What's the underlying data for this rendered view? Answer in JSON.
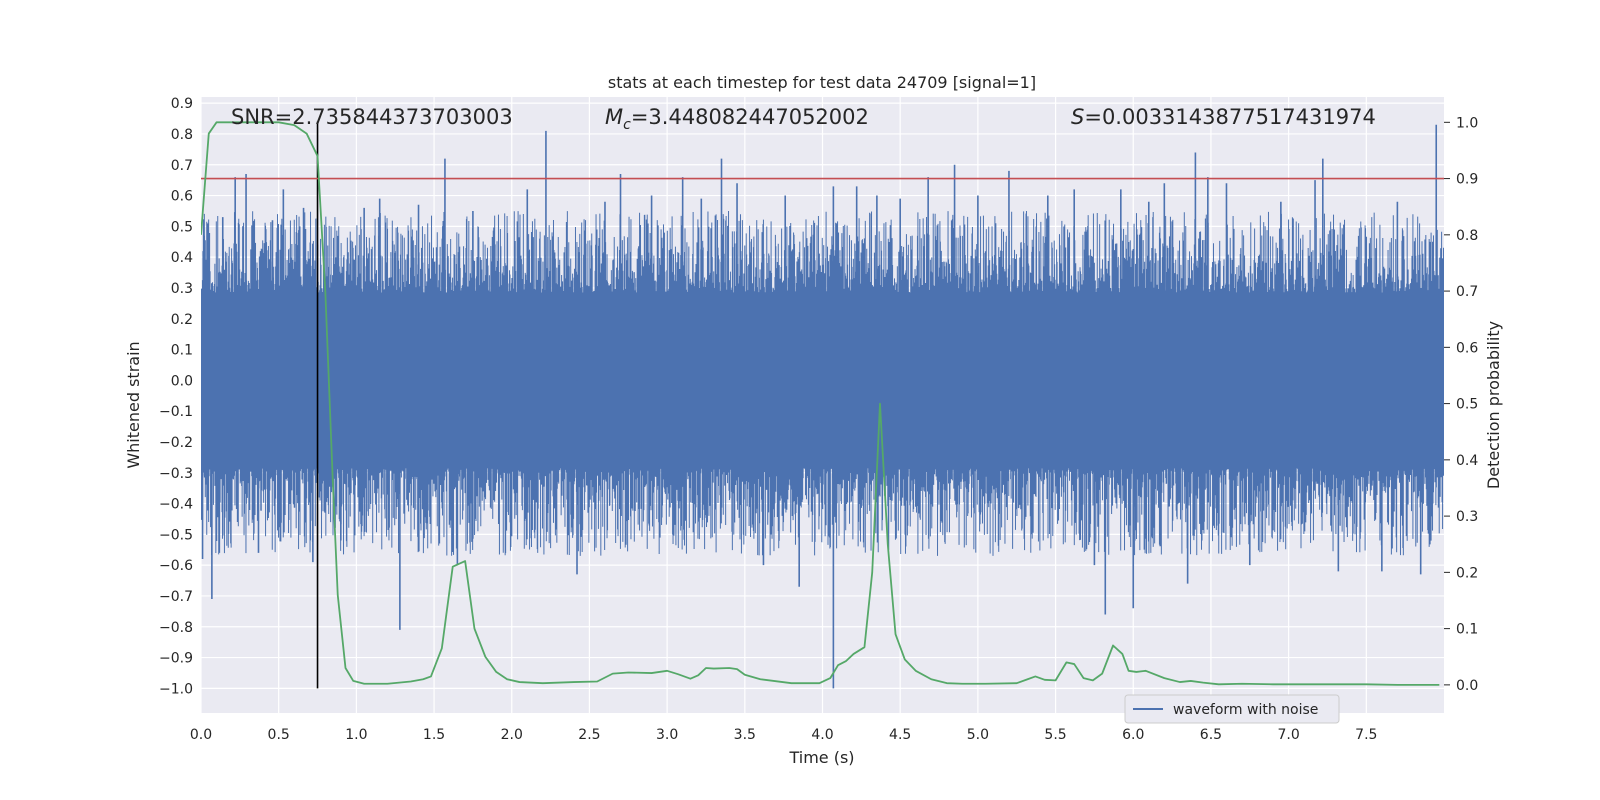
{
  "chart_data": {
    "type": "line",
    "title": "stats at each timestep for test data 24709 [signal=1]",
    "xlabel": "Time (s)",
    "ylabel_left": "Whitened strain",
    "ylabel_right": "Detection probability",
    "xlim": [
      0.0,
      8.0
    ],
    "ylim_left": [
      -1.08,
      0.92
    ],
    "ylim_right": [
      -0.05,
      1.045
    ],
    "x_ticks": [
      0.0,
      0.5,
      1.0,
      1.5,
      2.0,
      2.5,
      3.0,
      3.5,
      4.0,
      4.5,
      5.0,
      5.5,
      6.0,
      6.5,
      7.0,
      7.5
    ],
    "x_tick_labels": [
      "0.0",
      "0.5",
      "1.0",
      "1.5",
      "2.0",
      "2.5",
      "3.0",
      "3.5",
      "4.0",
      "4.5",
      "5.0",
      "5.5",
      "6.0",
      "6.5",
      "7.0",
      "7.5"
    ],
    "y_left_ticks": [
      0.9,
      0.8,
      0.7,
      0.6,
      0.5,
      0.4,
      0.3,
      0.2,
      0.1,
      0.0,
      -0.1,
      -0.2,
      -0.3,
      -0.4,
      -0.5,
      -0.6,
      -0.7,
      -0.8,
      -0.9,
      -1.0
    ],
    "y_left_tick_labels": [
      "0.9",
      "0.8",
      "0.7",
      "0.6",
      "0.5",
      "0.4",
      "0.3",
      "0.2",
      "0.1",
      "0.0",
      "−0.1",
      "−0.2",
      "−0.3",
      "−0.4",
      "−0.5",
      "−0.6",
      "−0.7",
      "−0.8",
      "−0.9",
      "−1.0"
    ],
    "y_right_ticks": [
      1.0,
      0.9,
      0.8,
      0.7,
      0.6,
      0.5,
      0.4,
      0.3,
      0.2,
      0.1,
      0.0
    ],
    "y_right_tick_labels": [
      "1.0",
      "0.9",
      "0.8",
      "0.7",
      "0.6",
      "0.5",
      "0.4",
      "0.3",
      "0.2",
      "0.1",
      "0.0"
    ],
    "grid": true,
    "annotations": {
      "snr": "SNR=2.735844373703003",
      "mc_symbol": "M",
      "mc_sub": "c",
      "mc_value": "=3.448082447052002",
      "s_symbol": "S",
      "s_value": "=0.0033143877517431974"
    },
    "legend": {
      "label": "waveform with noise",
      "position": "lower right"
    },
    "threshold": {
      "axis": "right",
      "value": 0.9,
      "color": "#c44e52"
    },
    "vertical_marker": {
      "x": 0.75,
      "from": -1.0,
      "to": 0.84,
      "color": "#000000"
    },
    "waveform": {
      "name": "waveform with noise",
      "color": "#4c72b0",
      "core_amplitude": 0.285,
      "typical_peak": 0.45,
      "spikes": [
        [
          0.01,
          -0.58
        ],
        [
          0.02,
          0.47
        ],
        [
          0.07,
          -0.71
        ],
        [
          0.14,
          0.53
        ],
        [
          0.22,
          0.66
        ],
        [
          0.29,
          0.67
        ],
        [
          0.37,
          -0.56
        ],
        [
          0.46,
          0.52
        ],
        [
          0.53,
          0.62
        ],
        [
          0.66,
          0.56
        ],
        [
          0.72,
          -0.59
        ],
        [
          0.9,
          -0.52
        ],
        [
          1.05,
          0.56
        ],
        [
          1.15,
          0.59
        ],
        [
          1.28,
          -0.81
        ],
        [
          1.4,
          0.57
        ],
        [
          1.57,
          0.72
        ],
        [
          1.65,
          -0.6
        ],
        [
          1.75,
          0.55
        ],
        [
          2.1,
          0.62
        ],
        [
          2.22,
          0.81
        ],
        [
          2.42,
          -0.63
        ],
        [
          2.6,
          0.58
        ],
        [
          2.7,
          0.67
        ],
        [
          2.9,
          0.6
        ],
        [
          3.1,
          0.66
        ],
        [
          3.22,
          0.59
        ],
        [
          3.35,
          0.72
        ],
        [
          3.45,
          0.64
        ],
        [
          3.62,
          -0.6
        ],
        [
          3.76,
          0.6
        ],
        [
          3.85,
          -0.67
        ],
        [
          4.07,
          -1.0
        ],
        [
          4.07,
          0.63
        ],
        [
          4.22,
          0.63
        ],
        [
          4.35,
          0.6
        ],
        [
          4.5,
          0.59
        ],
        [
          4.68,
          0.66
        ],
        [
          4.85,
          0.7
        ],
        [
          5.0,
          0.6
        ],
        [
          5.2,
          0.68
        ],
        [
          5.45,
          0.6
        ],
        [
          5.62,
          0.62
        ],
        [
          5.75,
          -0.6
        ],
        [
          5.82,
          -0.76
        ],
        [
          5.92,
          0.62
        ],
        [
          6.0,
          -0.74
        ],
        [
          6.1,
          0.58
        ],
        [
          6.2,
          0.64
        ],
        [
          6.35,
          -0.66
        ],
        [
          6.4,
          0.74
        ],
        [
          6.48,
          0.66
        ],
        [
          6.6,
          0.64
        ],
        [
          6.75,
          -0.6
        ],
        [
          6.95,
          0.58
        ],
        [
          7.17,
          0.65
        ],
        [
          7.22,
          0.72
        ],
        [
          7.32,
          -0.62
        ],
        [
          7.6,
          -0.62
        ],
        [
          7.7,
          0.58
        ],
        [
          7.85,
          -0.63
        ],
        [
          7.95,
          0.83
        ]
      ]
    },
    "detection_probability": {
      "axis": "right",
      "color": "#55a868",
      "x": [
        0.0,
        0.05,
        0.1,
        0.15,
        0.2,
        0.3,
        0.4,
        0.5,
        0.6,
        0.68,
        0.75,
        0.8,
        0.85,
        0.88,
        0.93,
        0.98,
        1.05,
        1.2,
        1.35,
        1.43,
        1.48,
        1.55,
        1.62,
        1.7,
        1.76,
        1.83,
        1.9,
        1.97,
        2.05,
        2.2,
        2.4,
        2.55,
        2.65,
        2.75,
        2.9,
        3.0,
        3.07,
        3.15,
        3.2,
        3.25,
        3.3,
        3.4,
        3.45,
        3.5,
        3.6,
        3.8,
        3.98,
        4.05,
        4.1,
        4.15,
        4.2,
        4.27,
        4.32,
        4.37,
        4.42,
        4.47,
        4.53,
        4.6,
        4.7,
        4.8,
        4.9,
        5.05,
        5.25,
        5.32,
        5.37,
        5.43,
        5.5,
        5.57,
        5.62,
        5.68,
        5.74,
        5.8,
        5.87,
        5.93,
        5.97,
        6.02,
        6.08,
        6.2,
        6.3,
        6.37,
        6.45,
        6.55,
        6.7,
        6.9,
        7.1,
        7.3,
        7.5,
        7.7,
        7.9,
        7.97
      ],
      "values": [
        0.8,
        0.98,
        1.0,
        1.0,
        1.0,
        1.0,
        1.0,
        1.0,
        0.995,
        0.98,
        0.94,
        0.7,
        0.35,
        0.16,
        0.03,
        0.007,
        0.002,
        0.002,
        0.006,
        0.01,
        0.015,
        0.065,
        0.21,
        0.22,
        0.1,
        0.05,
        0.023,
        0.01,
        0.005,
        0.003,
        0.005,
        0.006,
        0.02,
        0.022,
        0.021,
        0.025,
        0.019,
        0.011,
        0.017,
        0.03,
        0.029,
        0.03,
        0.028,
        0.018,
        0.01,
        0.003,
        0.003,
        0.012,
        0.035,
        0.042,
        0.055,
        0.067,
        0.2,
        0.5,
        0.25,
        0.09,
        0.045,
        0.025,
        0.01,
        0.003,
        0.002,
        0.002,
        0.003,
        0.01,
        0.015,
        0.009,
        0.008,
        0.04,
        0.037,
        0.012,
        0.008,
        0.02,
        0.07,
        0.055,
        0.025,
        0.023,
        0.025,
        0.012,
        0.005,
        0.007,
        0.004,
        0.001,
        0.002,
        0.001,
        0.001,
        0.001,
        0.001,
        0.0,
        0.0,
        0.0
      ]
    }
  }
}
